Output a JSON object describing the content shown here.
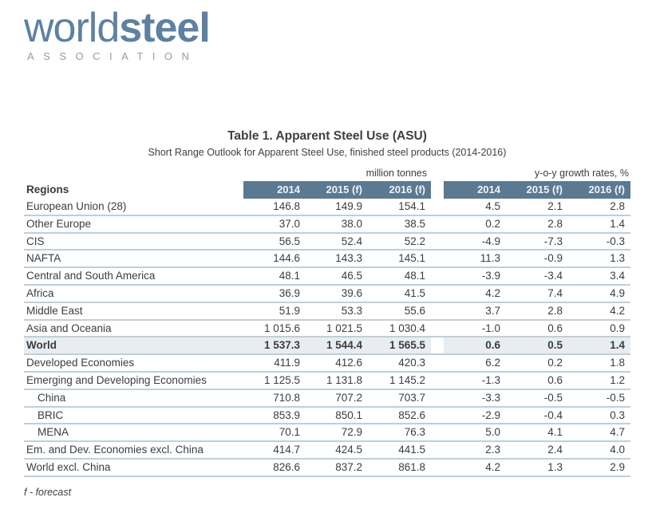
{
  "logo": {
    "world": "world",
    "steel": "steel",
    "association": "ASSOCIATION"
  },
  "title": "Table 1. Apparent Steel Use (ASU)",
  "subtitle": "Short Range Outlook for Apparent Steel Use, finished steel products (2014-2016)",
  "table": {
    "regions_label": "Regions",
    "group1_label": "million tonnes",
    "group2_label": "y-o-y growth rates, %",
    "year_headers": [
      "2014",
      "2015 (f)",
      "2016 (f)"
    ],
    "rows": [
      {
        "region": "European Union (28)",
        "tonnes": [
          "146.8",
          "149.9",
          "154.1"
        ],
        "growth": [
          "4.5",
          "2.1",
          "2.8"
        ],
        "bold": false,
        "highlight": false,
        "indent": false
      },
      {
        "region": "Other Europe",
        "tonnes": [
          "37.0",
          "38.0",
          "38.5"
        ],
        "growth": [
          "0.2",
          "2.8",
          "1.4"
        ],
        "bold": false,
        "highlight": false,
        "indent": false
      },
      {
        "region": "CIS",
        "tonnes": [
          "56.5",
          "52.4",
          "52.2"
        ],
        "growth": [
          "-4.9",
          "-7.3",
          "-0.3"
        ],
        "bold": false,
        "highlight": false,
        "indent": false
      },
      {
        "region": "NAFTA",
        "tonnes": [
          "144.6",
          "143.3",
          "145.1"
        ],
        "growth": [
          "11.3",
          "-0.9",
          "1.3"
        ],
        "bold": false,
        "highlight": false,
        "indent": false
      },
      {
        "region": "Central and South America",
        "tonnes": [
          "48.1",
          "46.5",
          "48.1"
        ],
        "growth": [
          "-3.9",
          "-3.4",
          "3.4"
        ],
        "bold": false,
        "highlight": false,
        "indent": false
      },
      {
        "region": "Africa",
        "tonnes": [
          "36.9",
          "39.6",
          "41.5"
        ],
        "growth": [
          "4.2",
          "7.4",
          "4.9"
        ],
        "bold": false,
        "highlight": false,
        "indent": false
      },
      {
        "region": "Middle East",
        "tonnes": [
          "51.9",
          "53.3",
          "55.6"
        ],
        "growth": [
          "3.7",
          "2.8",
          "4.2"
        ],
        "bold": false,
        "highlight": false,
        "indent": false
      },
      {
        "region": "Asia and Oceania",
        "tonnes": [
          "1 015.6",
          "1 021.5",
          "1 030.4"
        ],
        "growth": [
          "-1.0",
          "0.6",
          "0.9"
        ],
        "bold": false,
        "highlight": false,
        "indent": false
      },
      {
        "region": "World",
        "tonnes": [
          "1 537.3",
          "1 544.4",
          "1 565.5"
        ],
        "growth": [
          "0.6",
          "0.5",
          "1.4"
        ],
        "bold": true,
        "highlight": true,
        "indent": false
      },
      {
        "region": "Developed Economies",
        "tonnes": [
          "411.9",
          "412.6",
          "420.3"
        ],
        "growth": [
          "6.2",
          "0.2",
          "1.8"
        ],
        "bold": false,
        "highlight": false,
        "indent": false
      },
      {
        "region": "Emerging and Developing Economies",
        "tonnes": [
          "1 125.5",
          "1 131.8",
          "1 145.2"
        ],
        "growth": [
          "-1.3",
          "0.6",
          "1.2"
        ],
        "bold": false,
        "highlight": false,
        "indent": false
      },
      {
        "region": "China",
        "tonnes": [
          "710.8",
          "707.2",
          "703.7"
        ],
        "growth": [
          "-3.3",
          "-0.5",
          "-0.5"
        ],
        "bold": false,
        "highlight": false,
        "indent": true
      },
      {
        "region": "BRIC",
        "tonnes": [
          "853.9",
          "850.1",
          "852.6"
        ],
        "growth": [
          "-2.9",
          "-0.4",
          "0.3"
        ],
        "bold": false,
        "highlight": false,
        "indent": true
      },
      {
        "region": "MENA",
        "tonnes": [
          "70.1",
          "72.9",
          "76.3"
        ],
        "growth": [
          "5.0",
          "4.1",
          "4.7"
        ],
        "bold": false,
        "highlight": false,
        "indent": true
      },
      {
        "region": "Em. and Dev. Economies excl. China",
        "tonnes": [
          "414.7",
          "424.5",
          "441.5"
        ],
        "growth": [
          "2.3",
          "2.4",
          "4.0"
        ],
        "bold": false,
        "highlight": false,
        "indent": false
      },
      {
        "region": "World excl. China",
        "tonnes": [
          "826.6",
          "837.2",
          "861.8"
        ],
        "growth": [
          "4.2",
          "1.3",
          "2.9"
        ],
        "bold": false,
        "highlight": false,
        "indent": false
      }
    ]
  },
  "footnote": "f - forecast",
  "colors": {
    "header_bg": "#5b7a92",
    "header_text": "#eff3f6",
    "highlight_row_bg": "#e8edf1",
    "separator": "#bfcfda",
    "logo_blue": "#5d81a3",
    "association_gray": "#9b9b9b",
    "body_text": "#3d3d3d"
  }
}
